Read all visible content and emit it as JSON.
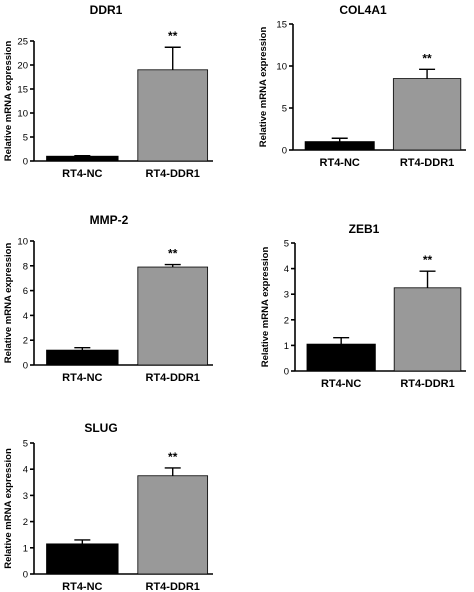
{
  "chart_data": [
    {
      "type": "bar",
      "title": "DDR1",
      "ylabel": "Relative mRNA expression",
      "categories": [
        "RT4-NC",
        "RT4-DDR1"
      ],
      "values": [
        1.0,
        19.0
      ],
      "errors": [
        0.1,
        4.7
      ],
      "ylim": [
        0,
        25
      ],
      "yticks": [
        "0",
        "5",
        "10",
        "15",
        "20",
        "25"
      ],
      "yticks_values": [
        0,
        5,
        10,
        15,
        20,
        25
      ],
      "colors": [
        "#000000",
        "#999999"
      ],
      "annotation": "**",
      "grid": false
    },
    {
      "type": "bar",
      "title": "COL4A1",
      "ylabel": "Relative mRNA expression",
      "categories": [
        "RT4-NC",
        "RT4-DDR1"
      ],
      "values": [
        1.0,
        8.5
      ],
      "errors": [
        0.4,
        1.1
      ],
      "ylim": [
        0,
        15
      ],
      "yticks": [
        "0",
        "5",
        "10",
        "15"
      ],
      "yticks_values": [
        0,
        5,
        10,
        15
      ],
      "colors": [
        "#000000",
        "#999999"
      ],
      "annotation": "**",
      "grid": false
    },
    {
      "type": "bar",
      "title": "MMP-2",
      "ylabel": "Relative mRNA expression",
      "categories": [
        "RT4-NC",
        "RT4-DDR1"
      ],
      "values": [
        1.2,
        7.9
      ],
      "errors": [
        0.2,
        0.2
      ],
      "ylim": [
        0,
        10
      ],
      "yticks": [
        "0",
        "2",
        "4",
        "6",
        "8",
        "10"
      ],
      "yticks_values": [
        0,
        2,
        4,
        6,
        8,
        10
      ],
      "colors": [
        "#000000",
        "#999999"
      ],
      "annotation": "**",
      "grid": false
    },
    {
      "type": "bar",
      "title": "ZEB1",
      "ylabel": "Relative mRNA expression",
      "categories": [
        "RT4-NC",
        "RT4-DDR1"
      ],
      "values": [
        1.05,
        3.25
      ],
      "errors": [
        0.25,
        0.65
      ],
      "ylim": [
        0,
        5
      ],
      "yticks": [
        "0",
        "1",
        "2",
        "3",
        "4",
        "5"
      ],
      "yticks_values": [
        0,
        1,
        2,
        3,
        4,
        5
      ],
      "colors": [
        "#000000",
        "#999999"
      ],
      "annotation": "**",
      "grid": false
    },
    {
      "type": "bar",
      "title": "SLUG",
      "ylabel": "Relative mRNA expression",
      "categories": [
        "RT4-NC",
        "RT4-DDR1"
      ],
      "values": [
        1.15,
        3.75
      ],
      "errors": [
        0.15,
        0.3
      ],
      "ylim": [
        0,
        5
      ],
      "yticks": [
        "0",
        "1",
        "2",
        "3",
        "4",
        "5"
      ],
      "yticks_values": [
        0,
        1,
        2,
        3,
        4,
        5
      ],
      "colors": [
        "#000000",
        "#999999"
      ],
      "annotation": "**",
      "grid": false
    }
  ]
}
